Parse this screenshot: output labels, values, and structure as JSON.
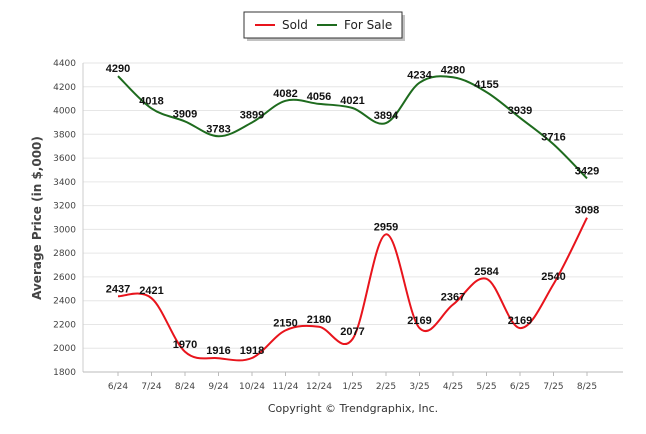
{
  "chart_data": {
    "type": "line",
    "ylabel": "Average Price (in $,000)",
    "ylim": [
      1800,
      4400
    ],
    "yticks": [
      1800,
      2000,
      2200,
      2400,
      2600,
      2800,
      3000,
      3200,
      3400,
      3600,
      3800,
      4000,
      4200,
      4400
    ],
    "grid": true,
    "legend_position": "top-center",
    "categories": [
      "6/24",
      "7/24",
      "8/24",
      "9/24",
      "10/24",
      "11/24",
      "12/24",
      "1/25",
      "2/25",
      "3/25",
      "4/25",
      "5/25",
      "6/25",
      "7/25",
      "8/25"
    ],
    "series": [
      {
        "name": "Sold",
        "color": "#e8141c",
        "values": [
          2437,
          2421,
          1970,
          1916,
          1918,
          2150,
          2180,
          2077,
          2959,
          2169,
          2367,
          2584,
          2169,
          2540,
          3098
        ]
      },
      {
        "name": "For Sale",
        "color": "#1e6b1e",
        "values": [
          4290,
          4018,
          3909,
          3783,
          3899,
          4082,
          4056,
          4021,
          3894,
          4234,
          4280,
          4155,
          3939,
          3716,
          3429
        ]
      }
    ]
  },
  "footer": {
    "copyright": "Copyright © Trendgraphix, Inc."
  }
}
